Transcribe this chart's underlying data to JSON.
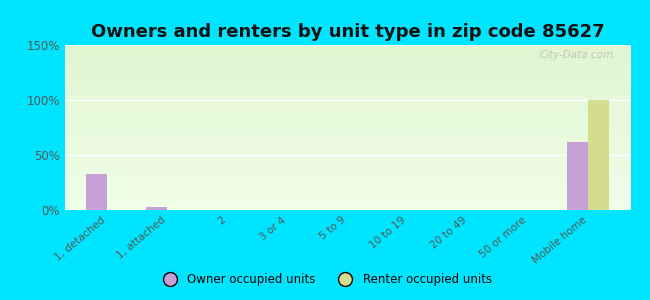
{
  "title": "Owners and renters by unit type in zip code 85627",
  "categories": [
    "1, detached",
    "1, attached",
    "2",
    "3 or 4",
    "5 to 9",
    "10 to 19",
    "20 to 49",
    "50 or more",
    "Mobile home"
  ],
  "owner_values": [
    33,
    3,
    0,
    0,
    0,
    0,
    0,
    0,
    62
  ],
  "renter_values": [
    0,
    0,
    0,
    0,
    0,
    0,
    0,
    0,
    100
  ],
  "owner_color": "#c8a0d8",
  "renter_color": "#d4dc90",
  "background_color": "#00e5ff",
  "plot_bg_color": "#e8f5e0",
  "ylim": [
    0,
    150
  ],
  "yticks": [
    0,
    50,
    100,
    150
  ],
  "ytick_labels": [
    "0%",
    "50%",
    "100%",
    "150%"
  ],
  "bar_width": 0.35,
  "title_fontsize": 13,
  "watermark": "City-Data.com"
}
